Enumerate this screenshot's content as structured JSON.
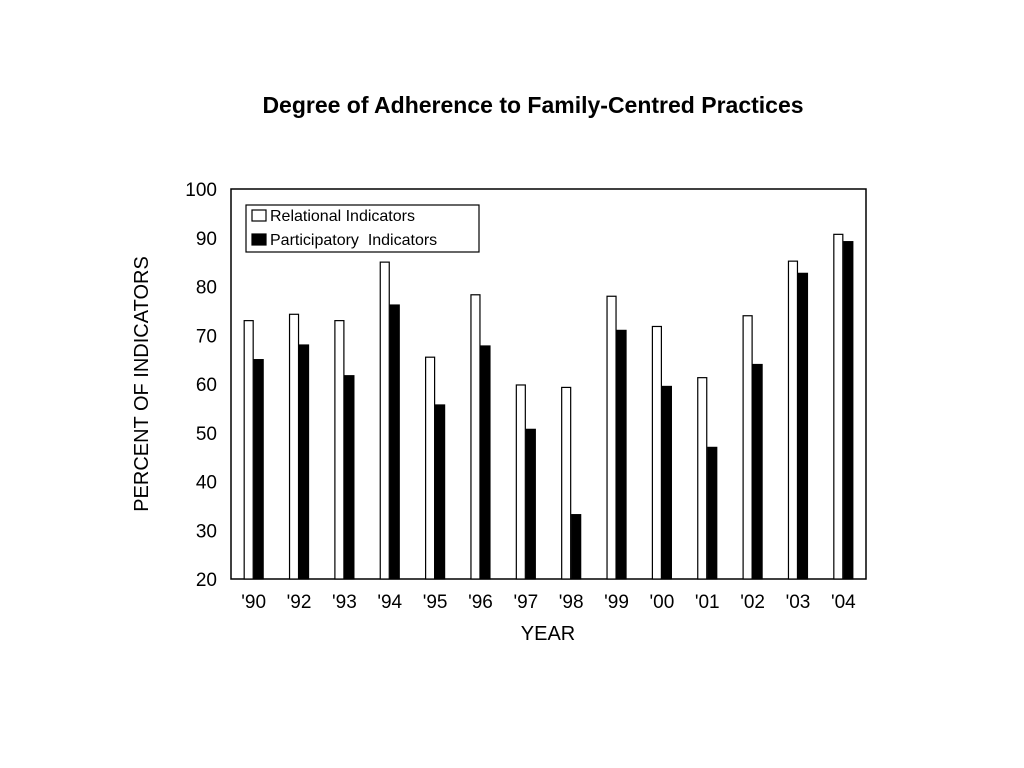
{
  "chart_data": {
    "type": "bar",
    "title": "Degree of Adherence to Family-Centred Practices",
    "xlabel": "YEAR",
    "ylabel": "PERCENT OF INDICATORS",
    "categories": [
      "'90",
      "'92",
      "'93",
      "'94",
      "'95",
      "'96",
      "'97",
      "'98",
      "'99",
      "'00",
      "'01",
      "'02",
      "'03",
      "'04"
    ],
    "series": [
      {
        "name": "Relational Indicators",
        "color": "#ffffff",
        "values": [
          73,
          74.3,
          73,
          85,
          65.5,
          78.3,
          59.8,
          59.3,
          78,
          71.8,
          61.3,
          74,
          85.2,
          90.7
        ]
      },
      {
        "name": "Participatory  Indicators",
        "color": "#000000",
        "values": [
          65,
          68,
          61.7,
          76.2,
          55.7,
          67.8,
          50.7,
          33.2,
          71,
          59.5,
          47,
          64,
          82.7,
          89.2
        ]
      }
    ],
    "ylim": [
      20,
      100
    ],
    "yticks": [
      20,
      30,
      40,
      50,
      60,
      70,
      80,
      90,
      100
    ],
    "grid": false,
    "legend_position": "top-left"
  }
}
